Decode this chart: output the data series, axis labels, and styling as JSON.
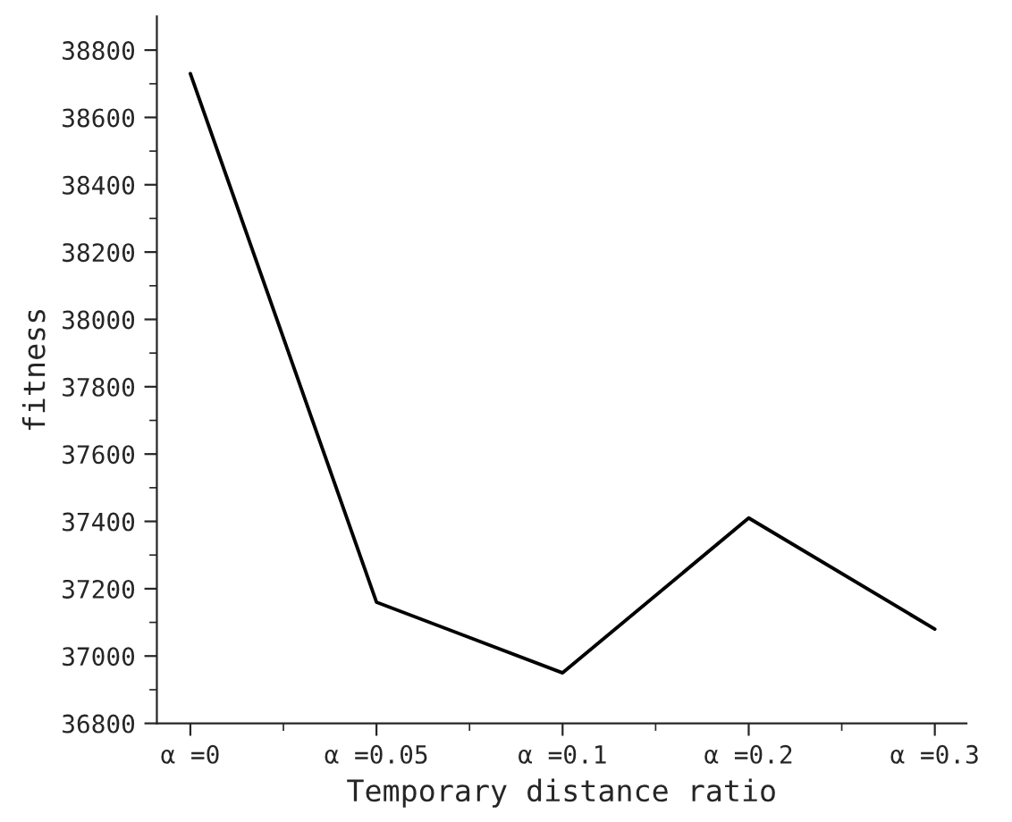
{
  "chart_data": {
    "type": "line",
    "xlabel": "Temporary distance ratio",
    "ylabel": "fitness",
    "categories": [
      "α =0",
      "α =0.05",
      "α =0.1",
      "α =0.2",
      "α =0.3"
    ],
    "series": [
      {
        "color": "#000000",
        "values": [
          38730,
          37160,
          36950,
          37410,
          37080
        ]
      }
    ],
    "ylim": [
      36800,
      38900
    ],
    "yticks": [
      36800,
      37000,
      37200,
      37400,
      37600,
      37800,
      38000,
      38200,
      38400,
      38600,
      38800
    ],
    "grid": false,
    "legend": false,
    "marker": "none",
    "line_style": "solid"
  }
}
